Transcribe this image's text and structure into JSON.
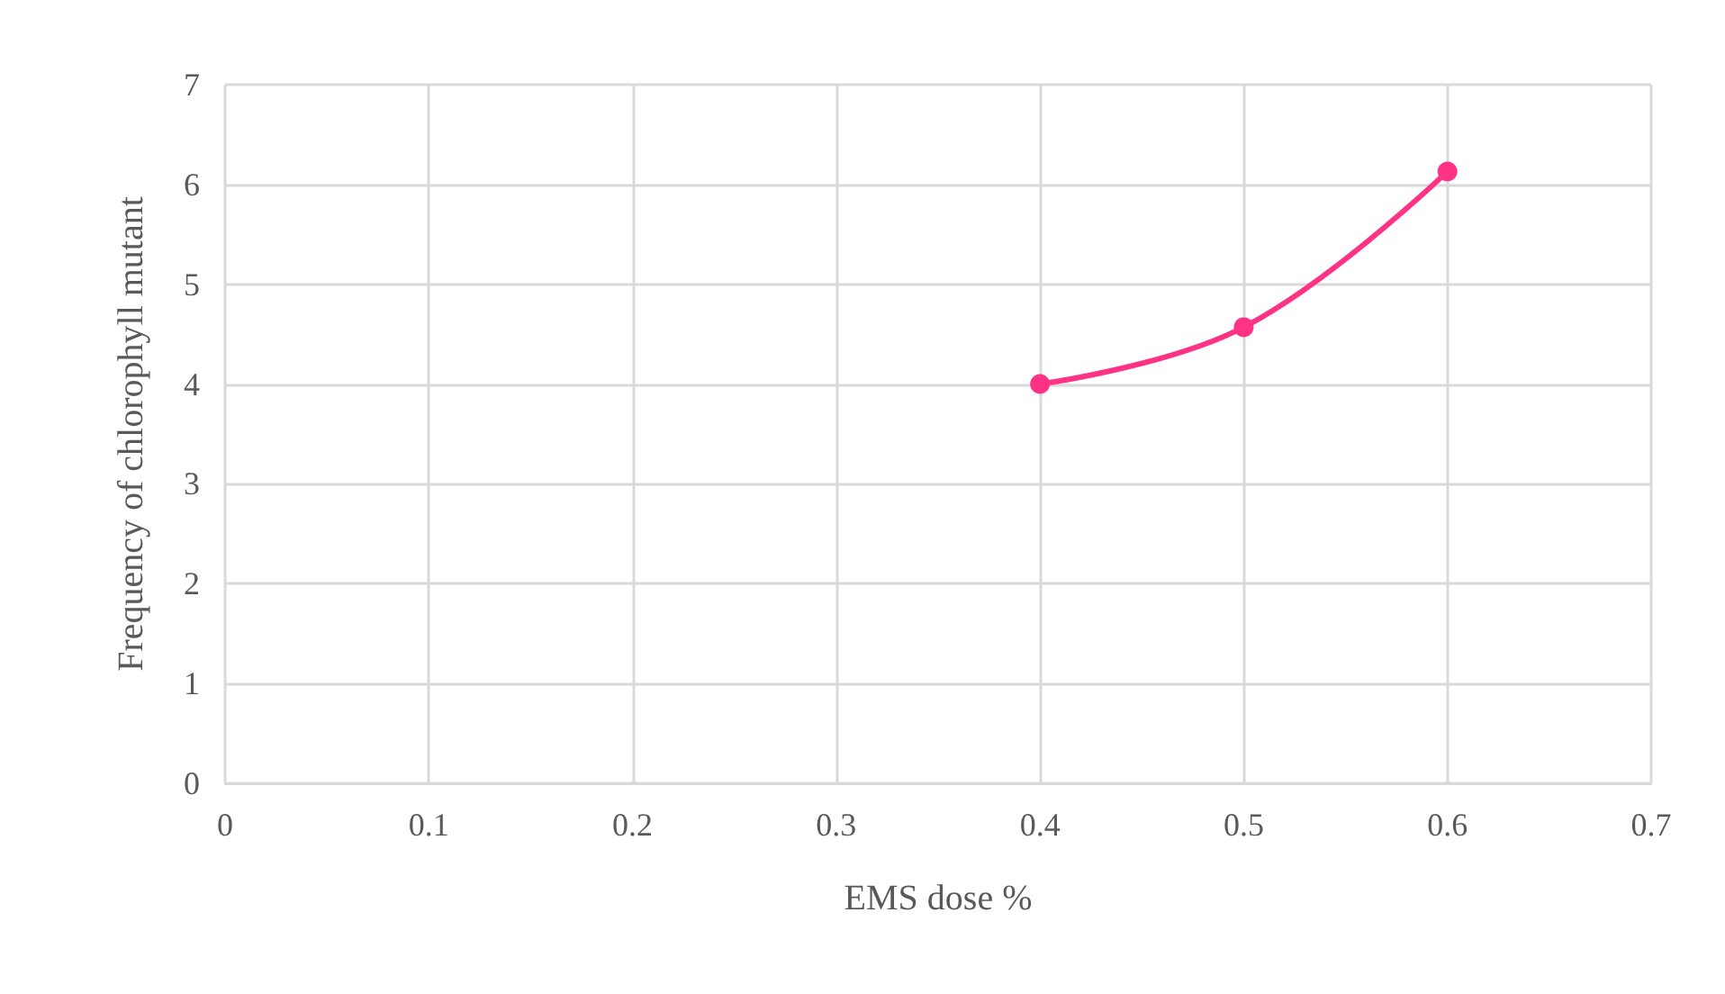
{
  "chart_data": {
    "type": "line",
    "xlabel": "EMS dose %",
    "ylabel": "Frequency of chlorophyll mutant",
    "x": [
      0.4,
      0.5,
      0.6
    ],
    "series": [
      {
        "color": "#ff3385",
        "values": [
          4.0,
          4.57,
          6.13
        ]
      }
    ],
    "xlim": [
      0,
      0.7
    ],
    "xticks": [
      0,
      0.1,
      0.2,
      0.3,
      0.4,
      0.5,
      0.6,
      0.7
    ],
    "ylim": [
      0,
      7
    ],
    "yticks": [
      0,
      1,
      2,
      3,
      4,
      5,
      6,
      7
    ],
    "grid": true,
    "marker": "circle",
    "line_style": "solid"
  }
}
